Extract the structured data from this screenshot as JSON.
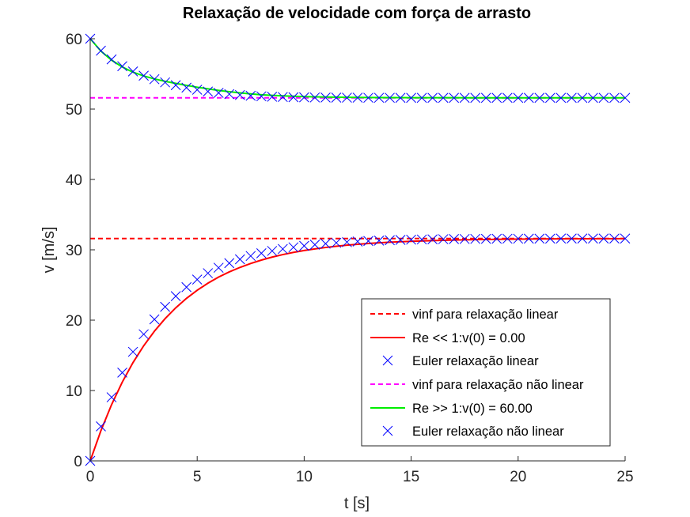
{
  "chart_data": {
    "type": "line",
    "title": "Relaxação de velocidade com força de arrasto",
    "xlabel": "t [s]",
    "ylabel": "v [m/s]",
    "xlim": [
      0,
      25
    ],
    "ylim": [
      0,
      60
    ],
    "xticks": [
      0,
      5,
      10,
      15,
      20,
      25
    ],
    "yticks": [
      0,
      10,
      20,
      30,
      40,
      50,
      60
    ],
    "grid": false,
    "legend_position": "bottom-right",
    "series": [
      {
        "name": "vinf para relaxação linear",
        "style": "dashed",
        "color": "#ff0000",
        "x": [
          0,
          25
        ],
        "y": [
          31.6,
          31.6
        ]
      },
      {
        "name": "Re << 1:v(0) = 0.00",
        "style": "solid",
        "color": "#ff0000",
        "x": [
          0,
          0.5,
          1,
          1.5,
          2,
          2.5,
          3,
          3.5,
          4,
          4.5,
          5,
          5.5,
          6,
          6.5,
          7,
          7.5,
          8,
          8.5,
          9,
          9.5,
          10,
          10.5,
          11,
          11.5,
          12,
          12.5,
          13,
          13.5,
          14,
          14.5,
          15,
          16,
          17,
          18,
          19,
          20,
          21,
          22,
          23,
          24,
          25
        ],
        "y": [
          0.0,
          4.29,
          8.0,
          11.2,
          13.97,
          16.36,
          18.43,
          20.22,
          21.76,
          23.1,
          24.25,
          25.25,
          26.12,
          26.86,
          27.5,
          28.06,
          28.54,
          28.96,
          29.32,
          29.63,
          29.9,
          30.13,
          30.33,
          30.51,
          30.66,
          30.79,
          30.9,
          31.0,
          31.08,
          31.15,
          31.21,
          31.31,
          31.39,
          31.45,
          31.49,
          31.52,
          31.55,
          31.56,
          31.57,
          31.58,
          31.59
        ]
      },
      {
        "name": "Euler relaxação linear",
        "style": "x-markers",
        "color": "#0000ff",
        "x": [
          0,
          0.5,
          1,
          1.5,
          2,
          2.5,
          3,
          3.5,
          4,
          4.5,
          5,
          5.5,
          6,
          6.5,
          7,
          7.5,
          8,
          8.5,
          9,
          9.5,
          10,
          10.5,
          11,
          11.5,
          12,
          12.5,
          13,
          13.5,
          14,
          14.5,
          15,
          15.5,
          16,
          16.5,
          17,
          17.5,
          18,
          18.5,
          19,
          19.5,
          20,
          20.5,
          21,
          21.5,
          22,
          22.5,
          23,
          23.5,
          24,
          24.5,
          25
        ],
        "y": [
          0.0,
          4.9,
          9.04,
          12.54,
          15.5,
          18.0,
          20.11,
          21.9,
          23.41,
          24.69,
          25.77,
          26.68,
          27.45,
          28.1,
          28.65,
          29.12,
          29.51,
          29.84,
          30.12,
          30.36,
          30.56,
          30.73,
          30.87,
          30.99,
          31.09,
          31.18,
          31.25,
          31.31,
          31.36,
          31.4,
          31.44,
          31.47,
          31.49,
          31.51,
          31.53,
          31.54,
          31.55,
          31.56,
          31.57,
          31.58,
          31.58,
          31.59,
          31.59,
          31.59,
          31.6,
          31.6,
          31.6,
          31.6,
          31.6,
          31.6,
          31.6
        ]
      },
      {
        "name": "vinf para relaxação não linear",
        "style": "dashed",
        "color": "#ff00ff",
        "x": [
          0,
          25
        ],
        "y": [
          51.6,
          51.6
        ]
      },
      {
        "name": "Re >> 1:v(0) = 60.00",
        "style": "solid",
        "color": "#00ee00",
        "x": [
          0,
          0.5,
          1,
          1.5,
          2,
          2.5,
          3,
          3.5,
          4,
          4.5,
          5,
          5.5,
          6,
          6.5,
          7,
          7.5,
          8,
          8.5,
          9,
          9.5,
          10,
          11,
          12,
          13,
          14,
          15,
          16,
          17,
          18,
          19,
          20,
          21,
          22,
          23,
          24,
          25
        ],
        "y": [
          60.0,
          58.25,
          56.95,
          55.98,
          55.25,
          54.71,
          54.29,
          53.95,
          53.65,
          53.37,
          53.11,
          52.88,
          52.66,
          52.47,
          52.3,
          52.16,
          52.04,
          51.95,
          51.88,
          51.82,
          51.77,
          51.71,
          51.67,
          51.65,
          51.63,
          51.62,
          51.61,
          51.61,
          51.6,
          51.6,
          51.6,
          51.6,
          51.6,
          51.6,
          51.6,
          51.6
        ]
      },
      {
        "name": "Euler relaxação não linear",
        "style": "x-markers",
        "color": "#0000ff",
        "x": [
          0,
          0.5,
          1,
          1.5,
          2,
          2.5,
          3,
          3.5,
          4,
          4.5,
          5,
          5.5,
          6,
          6.5,
          7,
          7.5,
          8,
          8.5,
          9,
          9.5,
          10,
          10.5,
          11,
          11.5,
          12,
          12.5,
          13,
          13.5,
          14,
          14.5,
          15,
          15.5,
          16,
          16.5,
          17,
          17.5,
          18,
          18.5,
          19,
          19.5,
          20,
          20.5,
          21,
          21.5,
          22,
          22.5,
          23,
          23.5,
          24,
          24.5,
          25
        ],
        "y": [
          60.0,
          58.3,
          57.06,
          56.1,
          55.35,
          54.75,
          54.25,
          53.8,
          53.4,
          53.05,
          52.75,
          52.5,
          52.3,
          52.13,
          52.0,
          51.9,
          51.82,
          51.76,
          51.72,
          51.69,
          51.67,
          51.65,
          51.64,
          51.63,
          51.62,
          51.62,
          51.61,
          51.61,
          51.61,
          51.6,
          51.6,
          51.6,
          51.6,
          51.6,
          51.6,
          51.6,
          51.6,
          51.6,
          51.6,
          51.6,
          51.6,
          51.6,
          51.6,
          51.6,
          51.6,
          51.6,
          51.6,
          51.6,
          51.6,
          51.6,
          51.6
        ]
      }
    ]
  }
}
